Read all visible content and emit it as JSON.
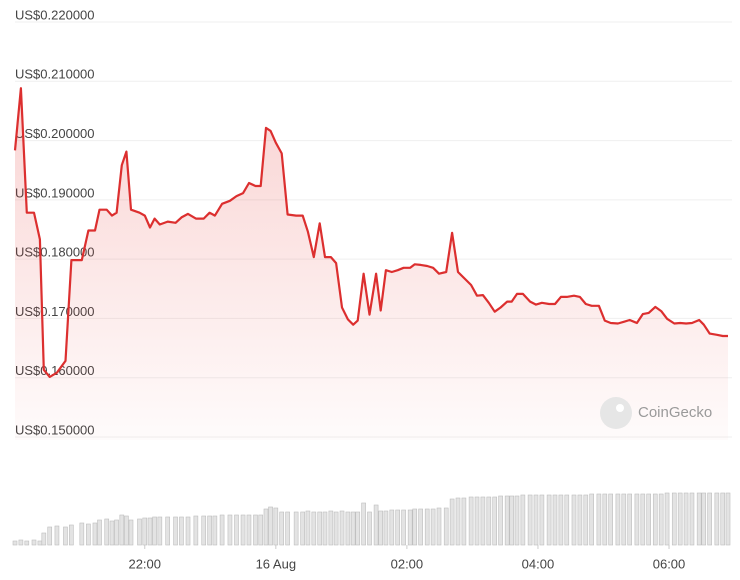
{
  "chart_data": {
    "type": "line",
    "watermark": "CoinGecko",
    "x": [
      20.02,
      20.11,
      20.2,
      20.31,
      20.4,
      20.46,
      20.55,
      20.66,
      20.79,
      20.88,
      21.04,
      21.14,
      21.24,
      21.31,
      21.42,
      21.5,
      21.57,
      21.65,
      21.72,
      21.79,
      21.92,
      22.0,
      22.08,
      22.15,
      22.23,
      22.35,
      22.47,
      22.56,
      22.66,
      22.78,
      22.9,
      22.99,
      23.07,
      23.18,
      23.3,
      23.4,
      23.5,
      23.59,
      23.69,
      23.77,
      23.85,
      23.92,
      24.0,
      24.09,
      24.18,
      24.31,
      24.41,
      24.49,
      24.58,
      24.67,
      24.75,
      24.84,
      24.92,
      25.01,
      25.1,
      25.18,
      25.25,
      25.34,
      25.43,
      25.53,
      25.6,
      25.68,
      25.77,
      25.86,
      25.95,
      26.05,
      26.12,
      26.21,
      26.31,
      26.4,
      26.49,
      26.6,
      26.69,
      26.78,
      26.87,
      26.98,
      27.07,
      27.16,
      27.25,
      27.34,
      27.43,
      27.53,
      27.6,
      27.68,
      27.77,
      27.88,
      27.97,
      28.06,
      28.17,
      28.26,
      28.35,
      28.44,
      28.55,
      28.64,
      28.73,
      28.82,
      28.93,
      29.02,
      29.11,
      29.22,
      29.31,
      29.4,
      29.51,
      29.6,
      29.69,
      29.79,
      29.88,
      29.97,
      30.08,
      30.17,
      30.26,
      30.35,
      30.46,
      30.53,
      30.62,
      30.73,
      30.82,
      30.9
    ],
    "series": [
      {
        "color": "#dc2f2f",
        "values": [
          0.198,
          0.2085,
          0.1875,
          0.1875,
          0.183,
          0.161,
          0.1598,
          0.1605,
          0.1625,
          0.1795,
          0.1795,
          0.1845,
          0.1845,
          0.188,
          0.188,
          0.187,
          0.1875,
          0.1955,
          0.1978,
          0.188,
          0.1875,
          0.187,
          0.185,
          0.1865,
          0.1855,
          0.186,
          0.1858,
          0.1867,
          0.1873,
          0.1865,
          0.1865,
          0.1875,
          0.187,
          0.189,
          0.1895,
          0.1903,
          0.1908,
          0.1925,
          0.192,
          0.192,
          0.2018,
          0.2013,
          0.1993,
          0.1975,
          0.1872,
          0.187,
          0.187,
          0.1843,
          0.18,
          0.1857,
          0.18,
          0.18,
          0.179,
          0.1715,
          0.1695,
          0.1686,
          0.1693,
          0.1772,
          0.1703,
          0.1772,
          0.171,
          0.1778,
          0.1775,
          0.1778,
          0.1782,
          0.1782,
          0.1788,
          0.1787,
          0.1785,
          0.1782,
          0.1772,
          0.1775,
          0.1841,
          0.1775,
          0.1765,
          0.1753,
          0.1735,
          0.1736,
          0.1723,
          0.1708,
          0.1715,
          0.1725,
          0.1725,
          0.1738,
          0.1738,
          0.1725,
          0.172,
          0.1723,
          0.1721,
          0.1721,
          0.1733,
          0.1733,
          0.1735,
          0.1733,
          0.1721,
          0.1718,
          0.1718,
          0.1693,
          0.1689,
          0.1688,
          0.1691,
          0.1694,
          0.1689,
          0.1704,
          0.1706,
          0.1716,
          0.1709,
          0.1696,
          0.1688,
          0.1689,
          0.1688,
          0.1689,
          0.1694,
          0.1686,
          0.1671,
          0.1669,
          0.1667,
          0.1667
        ]
      },
      {
        "type": "bar",
        "axis": "y2",
        "color": "#e3e3e3",
        "values": [
          4,
          5,
          4,
          5,
          4,
          12,
          18,
          19,
          18,
          20,
          22,
          21,
          22,
          25,
          26,
          24,
          25,
          30,
          29,
          25,
          26,
          27,
          27,
          28,
          28,
          28,
          28,
          28,
          28,
          29,
          29,
          29,
          29,
          30,
          30,
          30,
          30,
          30,
          30,
          30,
          36,
          38,
          37,
          33,
          33,
          33,
          33,
          34,
          33,
          33,
          33,
          34,
          33,
          34,
          33,
          33,
          33,
          42,
          33,
          40,
          34,
          34,
          35,
          35,
          35,
          35,
          36,
          36,
          36,
          36,
          37,
          37,
          46,
          47,
          47,
          48,
          48,
          48,
          48,
          48,
          49,
          49,
          49,
          49,
          50,
          50,
          50,
          50,
          50,
          50,
          50,
          50,
          50,
          50,
          50,
          51,
          51,
          51,
          51,
          51,
          51,
          51,
          51,
          51,
          51,
          51,
          51,
          52,
          52,
          52,
          52,
          52,
          52,
          52,
          52,
          52,
          52,
          52
        ]
      }
    ],
    "xlim": [
      20.02,
      30.9
    ],
    "xticks": [
      {
        "value": 22,
        "label": "22:00"
      },
      {
        "value": 24,
        "label": "16 Aug"
      },
      {
        "value": 26,
        "label": "02:00"
      },
      {
        "value": 28,
        "label": "04:00"
      },
      {
        "value": 30,
        "label": "06:00"
      }
    ],
    "ylim": [
      0.15,
      0.22
    ],
    "yticks": [
      {
        "value": 0.22,
        "label": "US$0.220000"
      },
      {
        "value": 0.21,
        "label": "US$0.210000"
      },
      {
        "value": 0.2,
        "label": "US$0.200000"
      },
      {
        "value": 0.19,
        "label": "US$0.190000"
      },
      {
        "value": 0.18,
        "label": "US$0.180000"
      },
      {
        "value": 0.17,
        "label": "US$0.170000"
      },
      {
        "value": 0.16,
        "label": "US$0.160000"
      },
      {
        "value": 0.15,
        "label": "US$0.150000"
      }
    ],
    "y2lim": [
      0,
      60
    ],
    "grid": true
  }
}
